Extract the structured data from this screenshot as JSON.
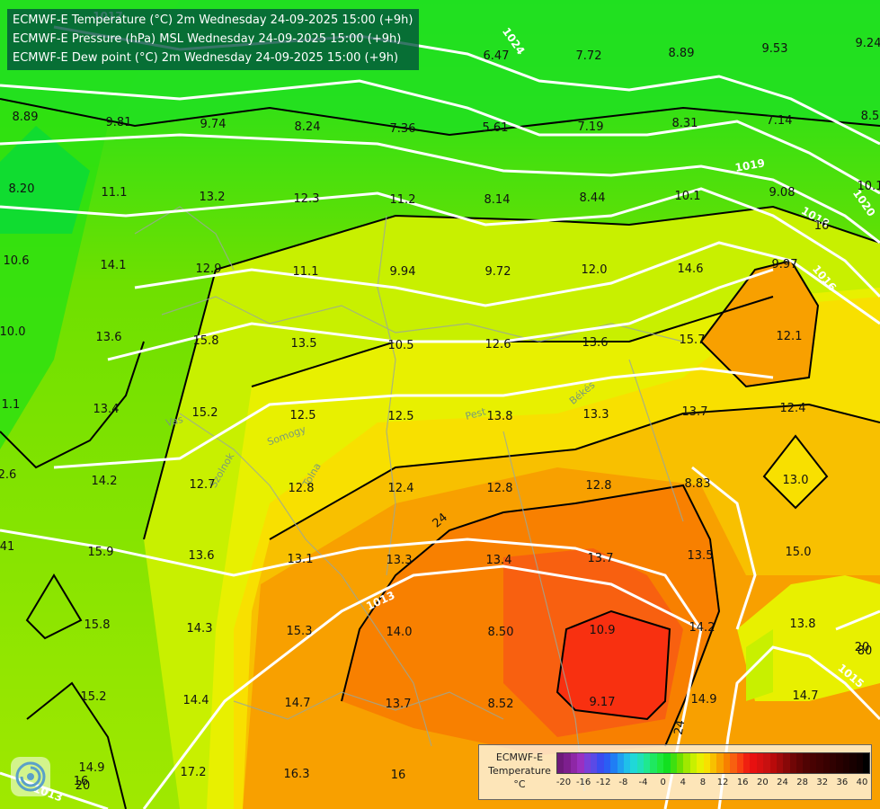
{
  "titles": [
    "ECMWF-E Temperature (°C) 2m Wednesday 24-09-2025 15:00 (+9h)",
    "ECMWF-E Pressure (hPa) MSL Wednesday 24-09-2025 15:00 (+9h)",
    "ECMWF-E Dew point (°C) 2m Wednesday 24-09-2025 15:00 (+9h)"
  ],
  "legend": {
    "title_lines": [
      "ECMWF-E",
      "Temperature",
      "°C"
    ],
    "tick_labels": [
      "-20",
      "-16",
      "-12",
      "-8",
      "-4",
      "0",
      "4",
      "8",
      "12",
      "16",
      "20",
      "24",
      "28",
      "32",
      "36",
      "40"
    ],
    "colors": [
      "#6e1a7a",
      "#7d1f8e",
      "#8e27a6",
      "#9a30c0",
      "#7a3fd8",
      "#5a4ae6",
      "#3a4cf0",
      "#2a5ef4",
      "#1f7ef4",
      "#1fa0f0",
      "#1fc0ea",
      "#1fd8d8",
      "#1fe0b8",
      "#1fe890",
      "#1fe860",
      "#1ee83a",
      "#12e020",
      "#3ee010",
      "#6ee000",
      "#a0e800",
      "#c8f000",
      "#e8f000",
      "#f8e000",
      "#f8c000",
      "#f8a000",
      "#f88000",
      "#f86010",
      "#f84010",
      "#f02010",
      "#e81010",
      "#d81010",
      "#c81010",
      "#b80a0a",
      "#a00a0a",
      "#880808",
      "#700606",
      "#600404",
      "#500303",
      "#480202",
      "#400202",
      "#380101",
      "#300101",
      "#280000",
      "#200000",
      "#180000",
      "#100000",
      "#000000"
    ],
    "value_step": 1
  },
  "isobar_labels": [
    "1024",
    "1019",
    "1018",
    "1020",
    "1013",
    "1015",
    "1013",
    "1016",
    "1017"
  ],
  "contour_labels": [
    "24",
    "20",
    "16",
    "16",
    "24"
  ],
  "place_labels": [
    "Vas",
    "Tolna",
    "Somogy",
    "Pest",
    "Békés",
    "Szolnok"
  ],
  "dewpoint_values": [
    "6.47",
    "7.72",
    "8.89",
    "9.53",
    "9.24",
    "8.89",
    "9.81",
    "9.74",
    "8.24",
    "7.36",
    "5.61",
    "7.19",
    "8.31",
    "7.14",
    "8.5",
    "8.20",
    "11.1",
    "13.2",
    "12.3",
    "11.2",
    "8.14",
    "8.44",
    "10.1",
    "9.08",
    "10.1",
    "10.6",
    "14.1",
    "12.9",
    "11.1",
    "9.94",
    "9.72",
    "12.0",
    "14.6",
    "9.97",
    "10.0",
    "13.6",
    "15.8",
    "13.5",
    "10.5",
    "12.6",
    "13.6",
    "15.7",
    "12.1",
    "13.4",
    "15.2",
    "12.5",
    "12.5",
    "13.8",
    "13.3",
    "13.7",
    "12.4",
    "14.2",
    "12.7",
    "12.8",
    "12.4",
    "12.8",
    "12.8",
    "8.83",
    "13.0",
    "15.9",
    "13.6",
    "13.1",
    "13.3",
    "13.4",
    "13.7",
    "13.5",
    "15.0",
    "15.8",
    "14.3",
    "15.3",
    "14.0",
    "8.50",
    "10.9",
    "14.2",
    "13.8",
    "15.2",
    "14.4",
    "14.7",
    "13.7",
    "8.52",
    "9.17",
    "14.9",
    "14.7",
    "14.9",
    "17.2",
    "16.3",
    "16",
    "20",
    "80",
    "1.1",
    "2.6",
    "41"
  ]
}
